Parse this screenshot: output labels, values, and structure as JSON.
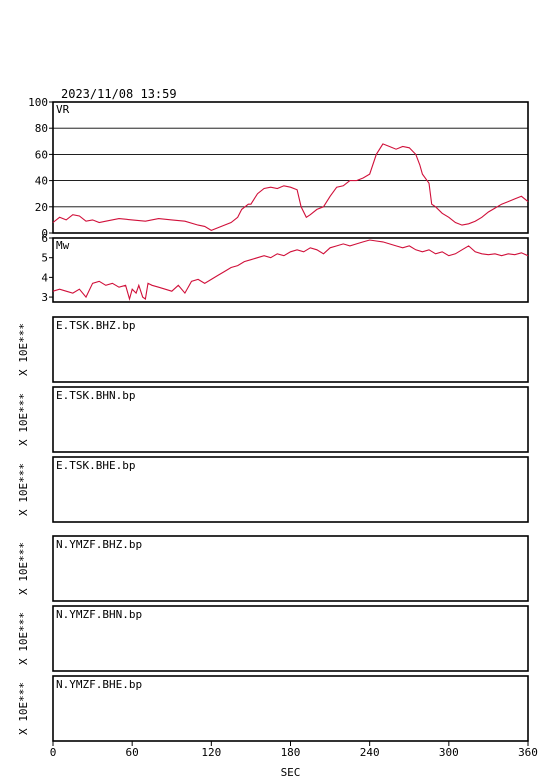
{
  "header": {
    "datetime": "2023/11/08 13:59"
  },
  "x_axis": {
    "label": "SEC",
    "min": 0,
    "max": 360,
    "ticks": [
      0,
      60,
      120,
      180,
      240,
      300,
      360
    ]
  },
  "chart_data": [
    {
      "type": "line",
      "panel_label": "VR",
      "ylim": [
        0,
        100
      ],
      "yticks": [
        0,
        20,
        40,
        60,
        80,
        100
      ],
      "grid": true,
      "line_color": "#d0103a",
      "x": [
        0,
        5,
        10,
        15,
        20,
        25,
        30,
        35,
        40,
        50,
        60,
        70,
        80,
        90,
        100,
        110,
        115,
        120,
        125,
        130,
        135,
        140,
        143,
        148,
        150,
        155,
        160,
        165,
        170,
        175,
        180,
        185,
        188,
        192,
        195,
        200,
        205,
        210,
        215,
        220,
        225,
        230,
        235,
        240,
        245,
        250,
        255,
        260,
        265,
        270,
        275,
        278,
        280,
        285,
        287,
        290,
        295,
        300,
        305,
        310,
        315,
        320,
        325,
        330,
        335,
        340,
        345,
        350,
        355,
        360
      ],
      "y": [
        8,
        12,
        10,
        14,
        13,
        9,
        10,
        8,
        9,
        11,
        10,
        9,
        11,
        10,
        9,
        6,
        5,
        2,
        4,
        6,
        8,
        12,
        18,
        22,
        22,
        30,
        34,
        35,
        34,
        36,
        35,
        33,
        20,
        12,
        14,
        18,
        20,
        28,
        35,
        36,
        40,
        40,
        42,
        45,
        60,
        68,
        66,
        64,
        66,
        65,
        60,
        52,
        45,
        38,
        22,
        20,
        15,
        12,
        8,
        6,
        7,
        9,
        12,
        16,
        19,
        22,
        24,
        26,
        28,
        24
      ]
    },
    {
      "type": "line",
      "panel_label": "Mw",
      "ylim": [
        2.75,
        6
      ],
      "yticks": [
        3,
        4,
        5,
        6
      ],
      "grid": false,
      "line_color": "#d0103a",
      "x": [
        0,
        5,
        10,
        15,
        20,
        25,
        30,
        35,
        40,
        45,
        50,
        55,
        58,
        60,
        63,
        65,
        68,
        70,
        72,
        75,
        80,
        85,
        90,
        95,
        100,
        105,
        110,
        115,
        120,
        125,
        130,
        135,
        140,
        145,
        150,
        155,
        160,
        165,
        170,
        175,
        180,
        185,
        190,
        195,
        200,
        205,
        210,
        215,
        220,
        225,
        230,
        235,
        240,
        245,
        250,
        255,
        260,
        265,
        270,
        275,
        280,
        285,
        290,
        295,
        300,
        305,
        310,
        315,
        320,
        325,
        330,
        335,
        340,
        345,
        350,
        355,
        360
      ],
      "y": [
        3.3,
        3.4,
        3.3,
        3.2,
        3.4,
        3.0,
        3.7,
        3.8,
        3.6,
        3.7,
        3.5,
        3.6,
        2.9,
        3.4,
        3.2,
        3.6,
        3.0,
        2.9,
        3.7,
        3.6,
        3.5,
        3.4,
        3.3,
        3.6,
        3.2,
        3.8,
        3.9,
        3.7,
        3.9,
        4.1,
        4.3,
        4.5,
        4.6,
        4.8,
        4.9,
        5.0,
        5.1,
        5.0,
        5.2,
        5.1,
        5.3,
        5.4,
        5.3,
        5.5,
        5.4,
        5.2,
        5.5,
        5.6,
        5.7,
        5.6,
        5.7,
        5.8,
        5.9,
        5.85,
        5.8,
        5.7,
        5.6,
        5.5,
        5.6,
        5.4,
        5.3,
        5.4,
        5.2,
        5.3,
        5.1,
        5.2,
        5.4,
        5.6,
        5.3,
        5.2,
        5.15,
        5.2,
        5.1,
        5.2,
        5.15,
        5.25,
        5.1
      ]
    }
  ],
  "waveform_panels": [
    {
      "station": "E.TSK.BHZ.bp",
      "scale_label": "X 10E***"
    },
    {
      "station": "E.TSK.BHN.bp",
      "scale_label": "X 10E***"
    },
    {
      "station": "E.TSK.BHE.bp",
      "scale_label": "X 10E***"
    },
    {
      "station": "N.YMZF.BHZ.bp",
      "scale_label": "X 10E***"
    },
    {
      "station": "N.YMZF.BHN.bp",
      "scale_label": "X 10E***"
    },
    {
      "station": "N.YMZF.BHE.bp",
      "scale_label": "X 10E***"
    }
  ]
}
